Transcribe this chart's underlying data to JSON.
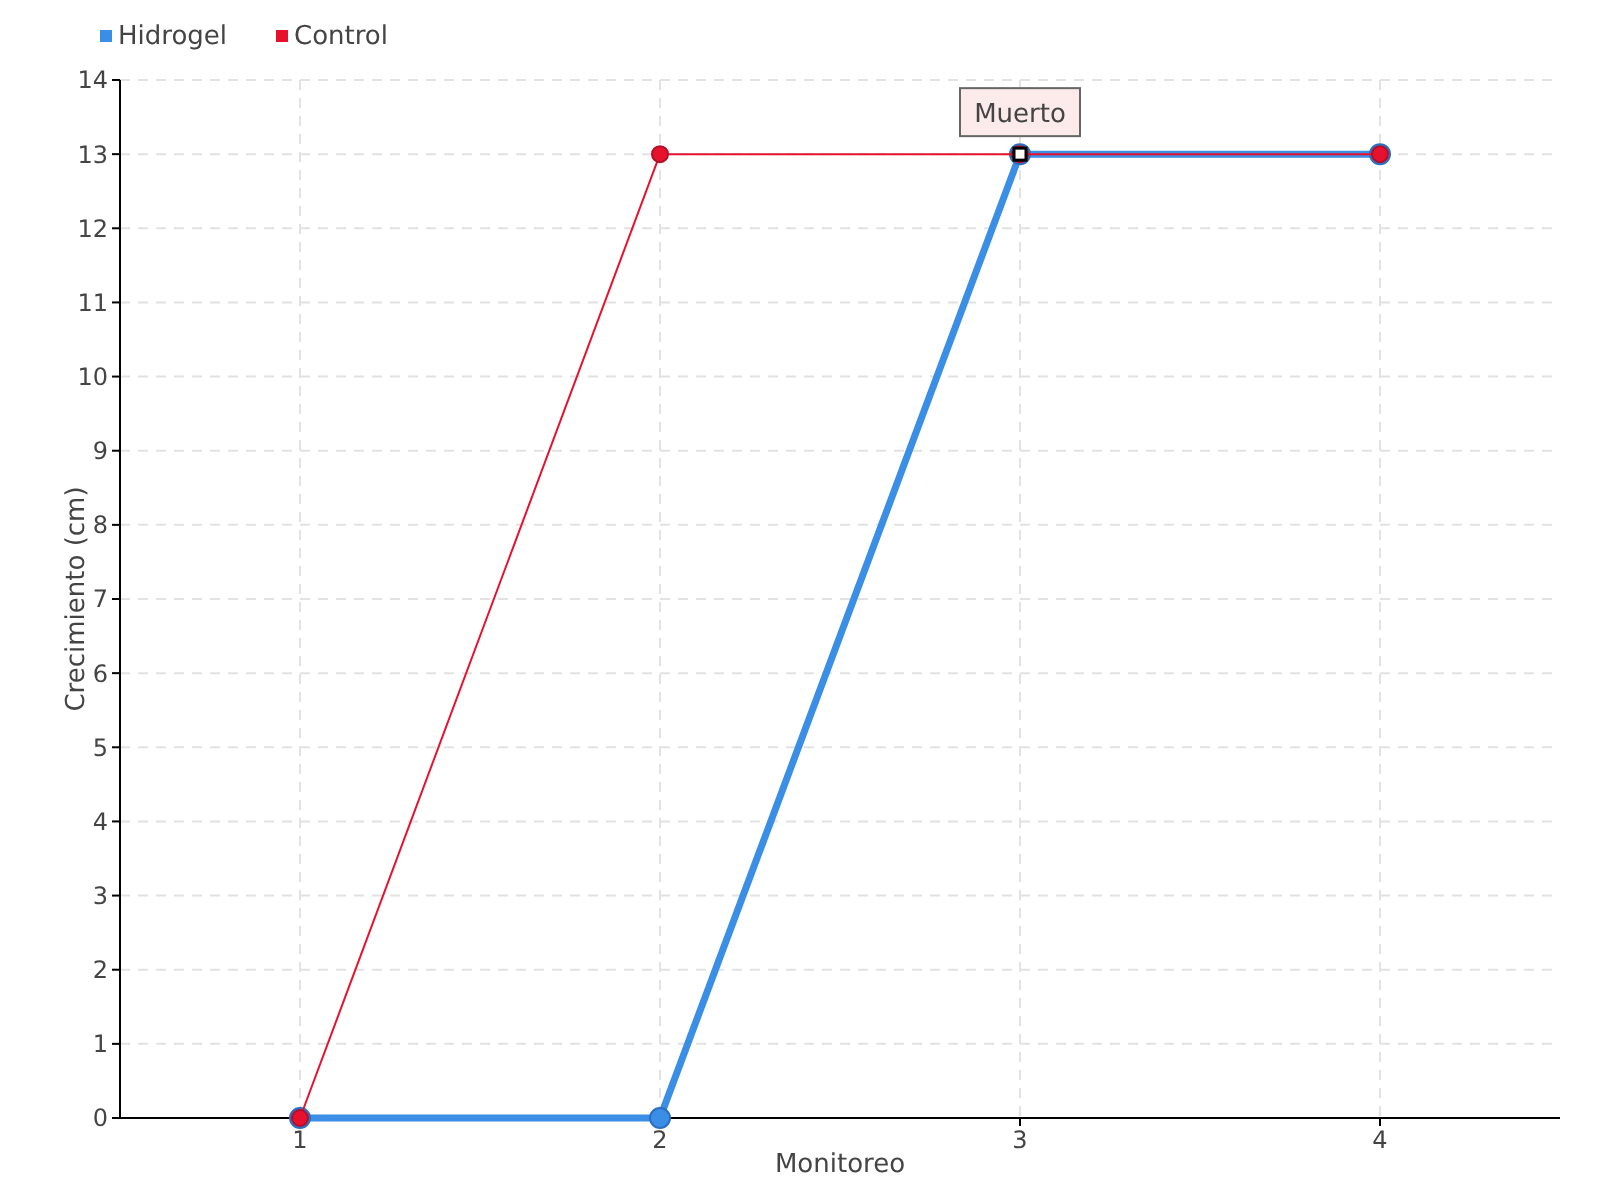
{
  "chart_data": {
    "type": "line",
    "xlabel": "Monitoreo",
    "ylabel": "Crecimiento (cm)",
    "x": [
      1,
      2,
      3,
      4
    ],
    "xlim": [
      0.5,
      4.5
    ],
    "xticks": [
      1,
      2,
      3,
      4
    ],
    "ylim": [
      0,
      14
    ],
    "yticks": [
      0,
      1,
      2,
      3,
      4,
      5,
      6,
      7,
      8,
      9,
      10,
      11,
      12,
      13,
      14
    ],
    "series": [
      {
        "name": "Hidrogel",
        "color": "#3a8ee6",
        "values": [
          0,
          0,
          13,
          13
        ]
      },
      {
        "name": "Control",
        "color": "#e8112d",
        "values": [
          0,
          13,
          13,
          13
        ]
      }
    ],
    "annotations": [
      {
        "text": "Muerto",
        "x": 3,
        "y": 13
      }
    ],
    "grid": true,
    "legend": "top left",
    "marker": "circle"
  }
}
